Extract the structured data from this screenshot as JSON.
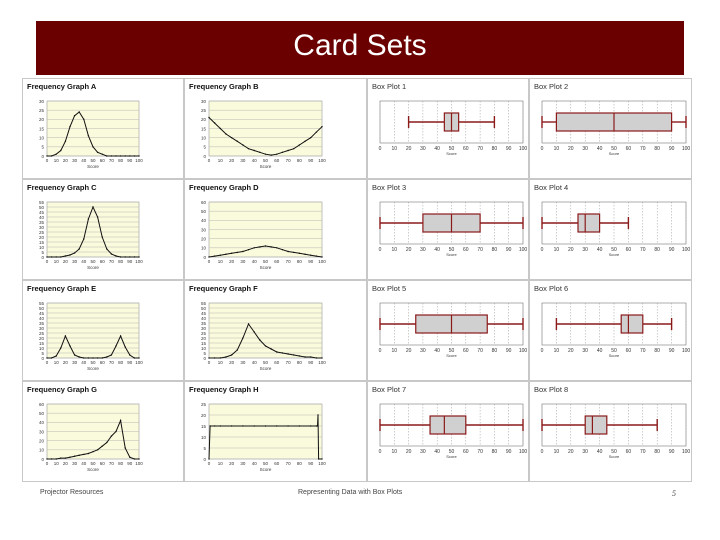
{
  "slide": {
    "title": "Card Sets",
    "footer_left": "Projector Resources",
    "footer_center": "Representing Data with Box Plots",
    "footer_right": "5"
  },
  "colors": {
    "banner": "#6b0000",
    "plot_bg": "#fafadc",
    "box_line": "#8b1a1a",
    "box_fill": "#d0d0d0"
  },
  "chart_data": [
    {
      "id": "fgA",
      "type": "line",
      "title": "Frequency Graph A",
      "xlabel": "Score",
      "xticks": [
        0,
        10,
        20,
        30,
        40,
        50,
        60,
        70,
        80,
        90,
        100
      ],
      "yticks": [
        0,
        5,
        10,
        15,
        20,
        25,
        30
      ],
      "xlim": [
        0,
        100
      ],
      "ylim": [
        0,
        30
      ],
      "x": [
        0,
        5,
        10,
        15,
        20,
        25,
        30,
        35,
        40,
        45,
        50,
        55,
        60,
        65,
        70,
        75,
        80,
        85,
        90,
        95,
        100
      ],
      "y": [
        0,
        0,
        1,
        3,
        8,
        16,
        22,
        24,
        20,
        11,
        5,
        2,
        1,
        0,
        0,
        0,
        0,
        0,
        0,
        0,
        0
      ]
    },
    {
      "id": "fgB",
      "type": "line",
      "title": "Frequency Graph B",
      "xlabel": "Score",
      "xticks": [
        0,
        10,
        20,
        30,
        40,
        50,
        60,
        70,
        80,
        90,
        100
      ],
      "yticks": [
        0,
        5,
        10,
        15,
        20,
        25,
        30
      ],
      "xlim": [
        0,
        100
      ],
      "ylim": [
        0,
        30
      ],
      "x": [
        0,
        5,
        10,
        15,
        20,
        25,
        30,
        35,
        40,
        45,
        50,
        55,
        60,
        65,
        70,
        75,
        80,
        85,
        90,
        95,
        100
      ],
      "y": [
        21,
        18,
        15,
        12,
        10,
        8,
        6,
        4,
        3,
        2,
        1,
        0.5,
        1,
        2,
        3,
        4,
        6,
        8,
        10,
        13,
        16
      ]
    },
    {
      "id": "fgC",
      "type": "line",
      "title": "Frequency Graph C",
      "xlabel": "Score",
      "xticks": [
        0,
        10,
        20,
        30,
        40,
        50,
        60,
        70,
        80,
        90,
        100
      ],
      "yticks": [
        0,
        5,
        10,
        15,
        20,
        25,
        30,
        35,
        40,
        45,
        50,
        55
      ],
      "xlim": [
        0,
        100
      ],
      "ylim": [
        0,
        55
      ],
      "x": [
        0,
        5,
        10,
        15,
        20,
        25,
        30,
        35,
        40,
        45,
        50,
        55,
        60,
        65,
        70,
        75,
        80,
        85,
        90,
        95,
        100
      ],
      "y": [
        0,
        0,
        0,
        0,
        1,
        2,
        4,
        8,
        18,
        38,
        50,
        40,
        20,
        8,
        3,
        1,
        0,
        0,
        0,
        0,
        0
      ]
    },
    {
      "id": "fgD",
      "type": "line",
      "title": "Frequency Graph D",
      "xlabel": "Score",
      "xticks": [
        0,
        10,
        20,
        30,
        40,
        50,
        60,
        70,
        80,
        90,
        100
      ],
      "yticks": [
        0,
        10,
        20,
        30,
        40,
        50,
        60
      ],
      "xlim": [
        0,
        100
      ],
      "ylim": [
        0,
        60
      ],
      "x": [
        0,
        5,
        10,
        15,
        20,
        25,
        30,
        35,
        40,
        45,
        50,
        55,
        60,
        65,
        70,
        75,
        80,
        85,
        90,
        95,
        100
      ],
      "y": [
        0,
        1,
        2,
        3,
        4,
        5,
        6,
        8,
        10,
        11,
        12,
        11,
        10,
        8,
        6,
        5,
        4,
        3,
        2,
        1,
        0
      ]
    },
    {
      "id": "fgE",
      "type": "line",
      "title": "Frequency Graph E",
      "xlabel": "Score",
      "xticks": [
        0,
        10,
        20,
        30,
        40,
        50,
        60,
        70,
        80,
        90,
        100
      ],
      "yticks": [
        0,
        5,
        10,
        15,
        20,
        25,
        30,
        35,
        40,
        45,
        50,
        55
      ],
      "xlim": [
        0,
        100
      ],
      "ylim": [
        0,
        55
      ],
      "x": [
        0,
        5,
        10,
        15,
        20,
        25,
        30,
        35,
        40,
        45,
        50,
        55,
        60,
        65,
        70,
        75,
        80,
        85,
        90,
        95,
        100
      ],
      "y": [
        0,
        0,
        2,
        10,
        22,
        12,
        3,
        1,
        0,
        0,
        0,
        0,
        0,
        1,
        3,
        12,
        22,
        11,
        3,
        0,
        0
      ]
    },
    {
      "id": "fgF",
      "type": "line",
      "title": "Frequency Graph F",
      "xlabel": "Score",
      "xticks": [
        0,
        10,
        20,
        30,
        40,
        50,
        60,
        70,
        80,
        90,
        100
      ],
      "yticks": [
        0,
        5,
        10,
        15,
        20,
        25,
        30,
        35,
        40,
        45,
        50,
        55
      ],
      "xlim": [
        0,
        100
      ],
      "ylim": [
        0,
        55
      ],
      "x": [
        0,
        5,
        10,
        15,
        20,
        25,
        30,
        35,
        40,
        45,
        50,
        55,
        60,
        65,
        70,
        75,
        80,
        85,
        90,
        95,
        100
      ],
      "y": [
        0,
        0,
        0,
        1,
        3,
        8,
        20,
        34,
        26,
        18,
        12,
        9,
        6,
        5,
        4,
        3,
        2,
        1,
        1,
        0,
        0
      ]
    },
    {
      "id": "fgG",
      "type": "line",
      "title": "Frequency Graph G",
      "xlabel": "Score",
      "xticks": [
        0,
        10,
        20,
        30,
        40,
        50,
        60,
        70,
        80,
        90,
        100
      ],
      "yticks": [
        0,
        10,
        20,
        30,
        40,
        50,
        60
      ],
      "xlim": [
        0,
        100
      ],
      "ylim": [
        0,
        60
      ],
      "x": [
        0,
        5,
        10,
        15,
        20,
        25,
        30,
        35,
        40,
        45,
        50,
        55,
        60,
        65,
        70,
        75,
        80,
        85,
        90,
        95,
        100
      ],
      "y": [
        0,
        0,
        0,
        1,
        1,
        2,
        3,
        4,
        5,
        6,
        8,
        10,
        14,
        18,
        25,
        30,
        42,
        12,
        2,
        0,
        0
      ]
    },
    {
      "id": "fgH",
      "type": "line",
      "title": "Frequency Graph H",
      "xlabel": "Score",
      "xticks": [
        0,
        10,
        20,
        30,
        40,
        50,
        60,
        70,
        80,
        90,
        100
      ],
      "yticks": [
        0,
        5,
        10,
        15,
        20,
        25
      ],
      "xlim": [
        0,
        100
      ],
      "ylim": [
        0,
        25
      ],
      "x": [
        0,
        1,
        5,
        10,
        20,
        30,
        40,
        50,
        60,
        70,
        80,
        90,
        95,
        96,
        96.5,
        97,
        100
      ],
      "y": [
        0,
        15,
        15,
        15,
        15,
        15,
        15,
        15,
        15,
        15,
        15,
        15,
        15,
        15,
        20,
        0,
        0
      ]
    },
    {
      "id": "bp1",
      "type": "boxplot",
      "title": "Box Plot 1",
      "xlabel": "Score",
      "xticks": [
        0,
        10,
        20,
        30,
        40,
        50,
        60,
        70,
        80,
        90,
        100
      ],
      "xlim": [
        0,
        100
      ],
      "min": 20,
      "q1": 45,
      "median": 50,
      "q3": 55,
      "max": 80
    },
    {
      "id": "bp2",
      "type": "boxplot",
      "title": "Box Plot 2",
      "xlabel": "Score",
      "xticks": [
        0,
        10,
        20,
        30,
        40,
        50,
        60,
        70,
        80,
        90,
        100
      ],
      "xlim": [
        0,
        100
      ],
      "min": 0,
      "q1": 10,
      "median": 50,
      "q3": 90,
      "max": 100
    },
    {
      "id": "bp3",
      "type": "boxplot",
      "title": "Box Plot 3",
      "xlabel": "Score",
      "xticks": [
        0,
        10,
        20,
        30,
        40,
        50,
        60,
        70,
        80,
        90,
        100
      ],
      "xlim": [
        0,
        100
      ],
      "min": 0,
      "q1": 30,
      "median": 50,
      "q3": 70,
      "max": 100
    },
    {
      "id": "bp4",
      "type": "boxplot",
      "title": "Box Plot 4",
      "xlabel": "Score",
      "xticks": [
        0,
        10,
        20,
        30,
        40,
        50,
        60,
        70,
        80,
        90,
        100
      ],
      "xlim": [
        0,
        100
      ],
      "min": 0,
      "q1": 25,
      "median": 30,
      "q3": 40,
      "max": 60
    },
    {
      "id": "bp5",
      "type": "boxplot",
      "title": "Box Plot 5",
      "xlabel": "Score",
      "xticks": [
        0,
        10,
        20,
        30,
        40,
        50,
        60,
        70,
        80,
        90,
        100
      ],
      "xlim": [
        0,
        100
      ],
      "min": 0,
      "q1": 25,
      "median": 50,
      "q3": 75,
      "max": 100
    },
    {
      "id": "bp6",
      "type": "boxplot",
      "title": "Box Plot 6",
      "xlabel": "Score",
      "xticks": [
        0,
        10,
        20,
        30,
        40,
        50,
        60,
        70,
        80,
        90,
        100
      ],
      "xlim": [
        0,
        100
      ],
      "min": 10,
      "q1": 55,
      "median": 60,
      "q3": 70,
      "max": 90
    },
    {
      "id": "bp7",
      "type": "boxplot",
      "title": "Box Plot 7",
      "xlabel": "Score",
      "xticks": [
        0,
        10,
        20,
        30,
        40,
        50,
        60,
        70,
        80,
        90,
        100
      ],
      "xlim": [
        0,
        100
      ],
      "min": 0,
      "q1": 35,
      "median": 45,
      "q3": 60,
      "max": 100
    },
    {
      "id": "bp8",
      "type": "boxplot",
      "title": "Box Plot 8",
      "xlabel": "Score",
      "xticks": [
        0,
        10,
        20,
        30,
        40,
        50,
        60,
        70,
        80,
        90,
        100
      ],
      "xlim": [
        0,
        100
      ],
      "min": 0,
      "q1": 30,
      "median": 35,
      "q3": 45,
      "max": 80
    }
  ]
}
